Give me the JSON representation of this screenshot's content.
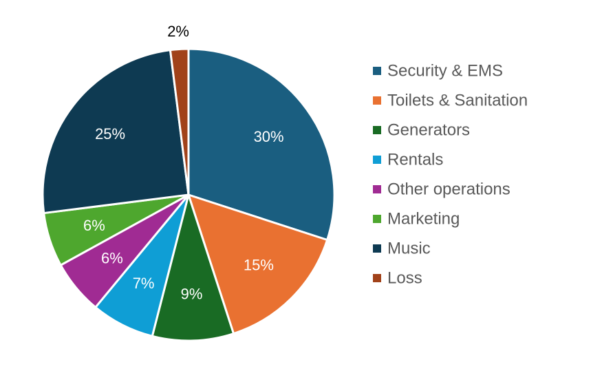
{
  "chart_data": {
    "type": "pie",
    "title": "",
    "legend_position": "right",
    "slices": [
      {
        "label": "Security & EMS",
        "value": 30,
        "value_label": "30%",
        "color": "#1a5e80"
      },
      {
        "label": "Toilets & Sanitation",
        "value": 15,
        "value_label": "15%",
        "color": "#e97131"
      },
      {
        "label": "Generators",
        "value": 9,
        "value_label": "9%",
        "color": "#196b24"
      },
      {
        "label": "Rentals",
        "value": 7,
        "value_label": "7%",
        "color": "#0f9ed5"
      },
      {
        "label": "Other operations",
        "value": 6,
        "value_label": "6%",
        "color": "#a02b93"
      },
      {
        "label": "Marketing",
        "value": 6,
        "value_label": "6%",
        "color": "#4ea72e"
      },
      {
        "label": "Music",
        "value": 25,
        "value_label": "25%",
        "color": "#0e3a52"
      },
      {
        "label": "Loss",
        "value": 2,
        "value_label": "2%",
        "color": "#a1421a"
      }
    ]
  }
}
